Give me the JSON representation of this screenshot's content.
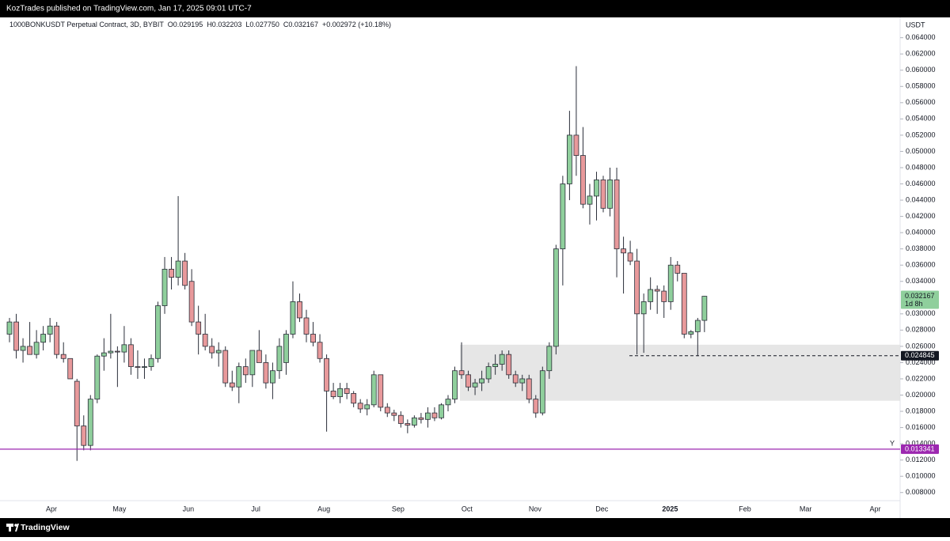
{
  "header": {
    "publisher": "KozTrades published on TradingView.com, Jan 17, 2025 09:01 UTC-7",
    "brand": "TradingView"
  },
  "chart_data": {
    "type": "candlestick",
    "title": "1000BONKUSDT Perpetual Contract, 3D, BYBIT",
    "ohlc_readout": [
      "O0.029195",
      "H0.032203",
      "L0.027750",
      "C0.032167",
      "+0.002972 (+10.18%)"
    ],
    "y_unit": "USDT",
    "up_color": "#8fcf9c",
    "down_color": "#e8999b",
    "outline_color": "#2a2e39",
    "grid": false,
    "ylim": [
      0.007,
      0.0665
    ],
    "xlim": [
      -1.41,
      132.0
    ],
    "yticks": [
      {
        "value": 0.064,
        "label": "0.064000"
      },
      {
        "value": 0.062,
        "label": "0.062000"
      },
      {
        "value": 0.06,
        "label": "0.060000"
      },
      {
        "value": 0.058,
        "label": "0.058000"
      },
      {
        "value": 0.056,
        "label": "0.056000"
      },
      {
        "value": 0.054,
        "label": "0.054000"
      },
      {
        "value": 0.052,
        "label": "0.052000"
      },
      {
        "value": 0.05,
        "label": "0.050000"
      },
      {
        "value": 0.048,
        "label": "0.048000"
      },
      {
        "value": 0.046,
        "label": "0.046000"
      },
      {
        "value": 0.044,
        "label": "0.044000"
      },
      {
        "value": 0.042,
        "label": "0.042000"
      },
      {
        "value": 0.04,
        "label": "0.040000"
      },
      {
        "value": 0.038,
        "label": "0.038000"
      },
      {
        "value": 0.036,
        "label": "0.036000"
      },
      {
        "value": 0.034,
        "label": "0.034000"
      },
      {
        "value": 0.03,
        "label": "0.030000"
      },
      {
        "value": 0.028,
        "label": "0.028000"
      },
      {
        "value": 0.026,
        "label": "0.026000"
      },
      {
        "value": 0.024,
        "label": "0.024000"
      },
      {
        "value": 0.022,
        "label": "0.022000"
      },
      {
        "value": 0.02,
        "label": "0.020000"
      },
      {
        "value": 0.018,
        "label": "0.018000"
      },
      {
        "value": 0.016,
        "label": "0.016000"
      },
      {
        "value": 0.014,
        "label": "0.014000"
      },
      {
        "value": 0.012,
        "label": "0.012000"
      },
      {
        "value": 0.01,
        "label": "0.010000"
      },
      {
        "value": 0.008,
        "label": "0.008000"
      }
    ],
    "xticks": [
      {
        "value": 6.22,
        "label": "Apr"
      },
      {
        "value": 16.3,
        "label": "May"
      },
      {
        "value": 26.5,
        "label": "Jun"
      },
      {
        "value": 36.5,
        "label": "Jul"
      },
      {
        "value": 46.6,
        "label": "Aug"
      },
      {
        "value": 57.6,
        "label": "Sep"
      },
      {
        "value": 67.8,
        "label": "Oct"
      },
      {
        "value": 77.9,
        "label": "Nov"
      },
      {
        "value": 87.8,
        "label": "Dec"
      },
      {
        "value": 97.9,
        "label": "2025"
      },
      {
        "value": 109.0,
        "label": "Feb"
      },
      {
        "value": 118.0,
        "label": "Mar"
      },
      {
        "value": 128.3,
        "label": "Apr"
      }
    ],
    "open": [
      0.0275,
      0.029,
      0.0255,
      0.026,
      0.025,
      0.0265,
      0.0275,
      0.0285,
      0.025,
      0.0245,
      0.0217,
      0.0162,
      0.0138,
      0.0195,
      0.0248,
      0.0252,
      0.0254,
      0.0253,
      0.0262,
      0.0235,
      0.0234,
      0.0235,
      0.0245,
      0.031,
      0.0355,
      0.0345,
      0.0365,
      0.034,
      0.029,
      0.0275,
      0.026,
      0.0252,
      0.0255,
      0.0215,
      0.021,
      0.0235,
      0.0225,
      0.0255,
      0.024,
      0.0215,
      0.023,
      0.024,
      0.0275,
      0.0315,
      0.0295,
      0.0275,
      0.0265,
      0.0245,
      0.0205,
      0.0198,
      0.0208,
      0.0202,
      0.019,
      0.0183,
      0.0188,
      0.0225,
      0.0185,
      0.0178,
      0.0175,
      0.0165,
      0.0163,
      0.0172,
      0.017,
      0.0178,
      0.0172,
      0.0188,
      0.0195,
      0.023,
      0.0225,
      0.021,
      0.0215,
      0.022,
      0.0235,
      0.0238,
      0.025,
      0.0225,
      0.0215,
      0.022,
      0.0195,
      0.0178,
      0.023,
      0.026,
      0.038,
      0.046,
      0.052,
      0.0495,
      0.0435,
      0.0445,
      0.0465,
      0.043,
      0.0465,
      0.038,
      0.0375,
      0.0365,
      0.03,
      0.0315,
      0.033,
      0.0328,
      0.0315,
      0.036,
      0.035,
      0.0275,
      0.0278,
      0.029195
    ],
    "high": [
      0.0295,
      0.03,
      0.027,
      0.029,
      0.028,
      0.0285,
      0.0295,
      0.029,
      0.0265,
      0.0245,
      0.022,
      0.0175,
      0.02,
      0.025,
      0.027,
      0.03,
      0.026,
      0.0285,
      0.027,
      0.0255,
      0.0245,
      0.025,
      0.0315,
      0.037,
      0.037,
      0.0445,
      0.0375,
      0.0355,
      0.031,
      0.03,
      0.027,
      0.0265,
      0.026,
      0.023,
      0.024,
      0.0245,
      0.025,
      0.028,
      0.025,
      0.024,
      0.027,
      0.028,
      0.034,
      0.0325,
      0.0305,
      0.029,
      0.0275,
      0.025,
      0.0215,
      0.0215,
      0.0215,
      0.0205,
      0.0195,
      0.0195,
      0.023,
      0.0225,
      0.019,
      0.0182,
      0.018,
      0.017,
      0.0175,
      0.0178,
      0.0185,
      0.0185,
      0.019,
      0.02,
      0.0235,
      0.0265,
      0.023,
      0.022,
      0.023,
      0.024,
      0.025,
      0.0255,
      0.0255,
      0.023,
      0.0225,
      0.0225,
      0.02,
      0.0235,
      0.0265,
      0.0385,
      0.047,
      0.055,
      0.0605,
      0.053,
      0.046,
      0.0475,
      0.047,
      0.048,
      0.048,
      0.0395,
      0.039,
      0.038,
      0.0325,
      0.0345,
      0.0335,
      0.0335,
      0.037,
      0.0365,
      0.035,
      0.028,
      0.0295,
      0.032203
    ],
    "low": [
      0.0265,
      0.0245,
      0.024,
      0.025,
      0.0245,
      0.0255,
      0.0265,
      0.0245,
      0.024,
      0.022,
      0.0119,
      0.0132,
      0.0132,
      0.019,
      0.023,
      0.0245,
      0.021,
      0.024,
      0.0225,
      0.022,
      0.022,
      0.023,
      0.024,
      0.03,
      0.033,
      0.0335,
      0.033,
      0.0285,
      0.025,
      0.0255,
      0.0245,
      0.0235,
      0.021,
      0.0205,
      0.019,
      0.0215,
      0.021,
      0.024,
      0.0208,
      0.0195,
      0.022,
      0.0225,
      0.027,
      0.029,
      0.0265,
      0.026,
      0.024,
      0.0155,
      0.0195,
      0.019,
      0.0195,
      0.0185,
      0.0178,
      0.0175,
      0.0185,
      0.018,
      0.0173,
      0.0168,
      0.016,
      0.0153,
      0.016,
      0.0165,
      0.016,
      0.0168,
      0.017,
      0.018,
      0.019,
      0.022,
      0.0205,
      0.02,
      0.0205,
      0.0215,
      0.0225,
      0.023,
      0.022,
      0.021,
      0.0205,
      0.019,
      0.0172,
      0.0175,
      0.022,
      0.025,
      0.0335,
      0.044,
      0.047,
      0.043,
      0.041,
      0.0415,
      0.0425,
      0.042,
      0.0345,
      0.0325,
      0.036,
      0.025,
      0.0252,
      0.0305,
      0.03,
      0.0295,
      0.0305,
      0.034,
      0.027,
      0.027,
      0.0248,
      0.02775
    ],
    "close": [
      0.029,
      0.0255,
      0.026,
      0.025,
      0.0265,
      0.0275,
      0.0285,
      0.025,
      0.0245,
      0.022,
      0.0162,
      0.0138,
      0.0195,
      0.0248,
      0.0252,
      0.0254,
      0.0253,
      0.0262,
      0.0235,
      0.0234,
      0.0235,
      0.0245,
      0.031,
      0.0355,
      0.0345,
      0.0365,
      0.0335,
      0.029,
      0.0275,
      0.026,
      0.0252,
      0.0255,
      0.0215,
      0.021,
      0.0235,
      0.0225,
      0.0255,
      0.024,
      0.0215,
      0.023,
      0.026,
      0.0275,
      0.0315,
      0.0295,
      0.0275,
      0.0265,
      0.0245,
      0.0205,
      0.0198,
      0.0208,
      0.0202,
      0.019,
      0.0183,
      0.0188,
      0.0225,
      0.0185,
      0.0178,
      0.0175,
      0.0165,
      0.0163,
      0.0172,
      0.017,
      0.0178,
      0.0172,
      0.0188,
      0.0195,
      0.023,
      0.0225,
      0.021,
      0.0215,
      0.022,
      0.0235,
      0.0238,
      0.025,
      0.0225,
      0.0215,
      0.022,
      0.0195,
      0.0178,
      0.023,
      0.026,
      0.038,
      0.046,
      0.052,
      0.0495,
      0.0435,
      0.0445,
      0.0465,
      0.043,
      0.0465,
      0.038,
      0.0375,
      0.0365,
      0.03,
      0.0315,
      0.033,
      0.0328,
      0.0315,
      0.036,
      0.035,
      0.0275,
      0.0278,
      0.0292,
      0.032167
    ],
    "countdown": "1d 8h",
    "zone": {
      "top": 0.0262,
      "bottom": 0.0193,
      "color": "#e0e0e0"
    },
    "dashed_level": {
      "value": 0.024845,
      "color": "#131722"
    },
    "hline": {
      "value": 0.013341,
      "label": "Y",
      "color": "#9c27b0"
    }
  }
}
